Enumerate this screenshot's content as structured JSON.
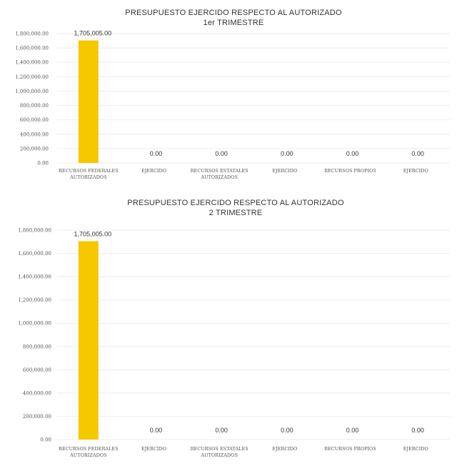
{
  "chart_data": [
    {
      "type": "bar",
      "title": "PRESUPUESTO EJERCIDO RESPECTO AL  AUTORIZADO",
      "subtitle": "1er TRIMESTRE",
      "categories": [
        [
          "RECURSOS FEDERALES",
          "AUTORIZADOS"
        ],
        [
          "EJERCIDO"
        ],
        [
          "RECURSOS ESTATALES",
          "AUTORIZADOS"
        ],
        [
          "EJERCIDO"
        ],
        [
          "RECURSOS PROPIOS"
        ],
        [
          "EJERCIDO"
        ]
      ],
      "values": [
        1705005.0,
        0,
        0,
        0,
        0,
        0
      ],
      "data_labels": [
        "1,705,005.00",
        "0.00",
        "0.00",
        "0.00",
        "0.00",
        "0.00"
      ],
      "ylim": [
        0,
        1800000
      ],
      "y_ticks": [
        0,
        200000,
        400000,
        600000,
        800000,
        1000000,
        1200000,
        1400000,
        1600000,
        1800000
      ],
      "y_tick_labels": [
        "0.00",
        "200,000.00",
        "400,000.00",
        "600,000.00",
        "800,000.00",
        "1,000,000.00",
        "1,200,000.00",
        "1,400,000.00",
        "1,600,000.00",
        "1,800,000.00"
      ],
      "grid": true,
      "bar_color": "#f5c800"
    },
    {
      "type": "bar",
      "title": "PRESUPUESTO EJERCIDO RESPECTO AL AUTORIZADO",
      "subtitle": "2  TRIMESTRE",
      "categories": [
        [
          "RECURSOS FEDERALES",
          "AUTORIZADOS"
        ],
        [
          "EJERCIDO"
        ],
        [
          "RECURSOS ESTATALES",
          "AUTORIZADOS"
        ],
        [
          "EJERCIDO"
        ],
        [
          "RECURSOS PROPIOS"
        ],
        [
          "EJERCIDO"
        ]
      ],
      "values": [
        1705005.0,
        0,
        0,
        0,
        0,
        0
      ],
      "data_labels": [
        "1,705,005.00",
        "0.00",
        "0.00",
        "0.00",
        "0.00",
        "0.00"
      ],
      "ylim": [
        0,
        1800000
      ],
      "y_ticks": [
        0,
        200000,
        400000,
        600000,
        800000,
        1000000,
        1200000,
        1400000,
        1600000,
        1800000
      ],
      "y_tick_labels": [
        "0.00",
        "200,000.00",
        "400,000.00",
        "600,000.00",
        "800,000.00",
        "1,000,000.00",
        "1,200,000.00",
        "1,400,000.00",
        "1,600,000.00",
        "1,800,000.00"
      ],
      "grid": true,
      "bar_color": "#f5c800"
    }
  ]
}
